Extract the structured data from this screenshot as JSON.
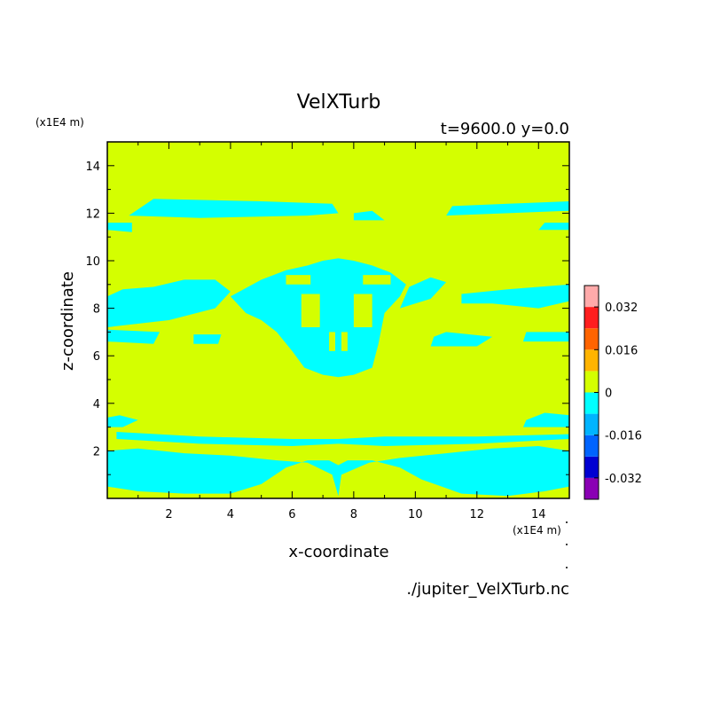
{
  "chart_data": {
    "type": "heatmap",
    "title": "VelXTurb",
    "subtitle": "t=9600.0 y=0.0",
    "xlabel": "x-coordinate",
    "ylabel": "z-coordinate",
    "x_units": "(x1E4 m)",
    "y_units": "(x1E4 m)",
    "xlim": [
      0,
      15
    ],
    "ylim": [
      0,
      15
    ],
    "x_ticks": [
      2,
      4,
      6,
      8,
      10,
      12,
      14
    ],
    "y_ticks": [
      2,
      4,
      6,
      8,
      10,
      12,
      14
    ],
    "x_tick_labels": [
      "2",
      "4",
      "6",
      "8",
      "10",
      "12",
      "14"
    ],
    "y_tick_labels": [
      "2",
      "4",
      "6",
      "8",
      "10",
      "12",
      "14"
    ],
    "background_level_color": "#d4ff00",
    "negative_level_color": "#00ffff",
    "colorbar": {
      "levels": [
        -0.04,
        -0.032,
        -0.024,
        -0.016,
        -0.008,
        0,
        0.008,
        0.016,
        0.024,
        0.032,
        0.04
      ],
      "colors": [
        "#8a00b4",
        "#0000d2",
        "#0064ff",
        "#00b4ff",
        "#00ffff",
        "#d4ff00",
        "#ffb400",
        "#ff6400",
        "#ff1e1e",
        "#ffaaaa"
      ],
      "tick_values": [
        -0.032,
        -0.016,
        0,
        0.016,
        0.032
      ],
      "tick_labels": [
        "-0.032",
        "-0.016",
        "0",
        "0.016",
        "0.032"
      ]
    },
    "negative_regions": [
      [
        [
          0.0,
          0.5
        ],
        [
          1.0,
          0.3
        ],
        [
          2.5,
          0.2
        ],
        [
          4.0,
          0.2
        ],
        [
          5.0,
          0.6
        ],
        [
          5.8,
          1.3
        ],
        [
          6.5,
          1.6
        ],
        [
          7.2,
          1.6
        ],
        [
          7.5,
          1.4
        ],
        [
          7.8,
          1.6
        ],
        [
          8.6,
          1.6
        ],
        [
          9.5,
          1.3
        ],
        [
          10.2,
          0.8
        ],
        [
          11.5,
          0.2
        ],
        [
          13.0,
          0.1
        ],
        [
          14.2,
          0.3
        ],
        [
          15.0,
          0.5
        ],
        [
          15.0,
          2.0
        ],
        [
          14.0,
          2.2
        ],
        [
          12.5,
          2.1
        ],
        [
          11.0,
          1.9
        ],
        [
          9.5,
          1.7
        ],
        [
          8.5,
          1.5
        ],
        [
          7.6,
          1.0
        ],
        [
          7.5,
          0.1
        ],
        [
          7.3,
          1.0
        ],
        [
          6.5,
          1.5
        ],
        [
          5.5,
          1.6
        ],
        [
          4.0,
          1.8
        ],
        [
          2.5,
          1.9
        ],
        [
          1.0,
          2.1
        ],
        [
          0.0,
          2.0
        ]
      ],
      [
        [
          0.3,
          2.5
        ],
        [
          3.0,
          2.3
        ],
        [
          6.0,
          2.2
        ],
        [
          7.5,
          2.3
        ],
        [
          9.0,
          2.2
        ],
        [
          12.0,
          2.3
        ],
        [
          15.0,
          2.5
        ],
        [
          15.0,
          2.7
        ],
        [
          12.0,
          2.6
        ],
        [
          9.0,
          2.6
        ],
        [
          7.5,
          2.5
        ],
        [
          6.0,
          2.5
        ],
        [
          3.0,
          2.6
        ],
        [
          0.3,
          2.8
        ]
      ],
      [
        [
          0.0,
          3.0
        ],
        [
          0.5,
          3.0
        ],
        [
          1.0,
          3.3
        ],
        [
          0.4,
          3.5
        ],
        [
          0.0,
          3.4
        ]
      ],
      [
        [
          13.5,
          3.0
        ],
        [
          15.0,
          3.0
        ],
        [
          15.0,
          3.5
        ],
        [
          14.2,
          3.6
        ],
        [
          13.6,
          3.3
        ]
      ],
      [
        [
          0.0,
          11.3
        ],
        [
          0.8,
          11.2
        ],
        [
          0.8,
          11.6
        ],
        [
          0.0,
          11.6
        ]
      ],
      [
        [
          0.7,
          11.9
        ],
        [
          3.0,
          11.8
        ],
        [
          6.5,
          11.9
        ],
        [
          7.5,
          12.0
        ],
        [
          7.3,
          12.4
        ],
        [
          5.0,
          12.5
        ],
        [
          1.5,
          12.6
        ]
      ],
      [
        [
          8.0,
          11.7
        ],
        [
          9.0,
          11.7
        ],
        [
          8.6,
          12.1
        ],
        [
          8.0,
          12.0
        ]
      ],
      [
        [
          11.0,
          11.9
        ],
        [
          13.0,
          12.0
        ],
        [
          15.0,
          12.1
        ],
        [
          15.0,
          12.5
        ],
        [
          13.0,
          12.4
        ],
        [
          11.2,
          12.3
        ]
      ],
      [
        [
          14.0,
          11.3
        ],
        [
          15.0,
          11.3
        ],
        [
          15.0,
          11.6
        ],
        [
          14.2,
          11.6
        ]
      ],
      [
        [
          0.0,
          7.2
        ],
        [
          2.0,
          7.5
        ],
        [
          3.5,
          8.0
        ],
        [
          4.0,
          8.7
        ],
        [
          3.5,
          9.2
        ],
        [
          2.5,
          9.2
        ],
        [
          1.5,
          8.9
        ],
        [
          0.5,
          8.8
        ],
        [
          0.0,
          8.5
        ]
      ],
      [
        [
          4.0,
          8.5
        ],
        [
          5.0,
          9.2
        ],
        [
          5.8,
          9.6
        ],
        [
          6.5,
          9.8
        ],
        [
          7.0,
          10.0
        ],
        [
          7.5,
          10.1
        ],
        [
          8.0,
          10.0
        ],
        [
          8.6,
          9.8
        ],
        [
          9.2,
          9.5
        ],
        [
          9.7,
          9.0
        ],
        [
          9.5,
          8.5
        ],
        [
          9.0,
          7.8
        ],
        [
          8.8,
          6.5
        ],
        [
          8.6,
          5.5
        ],
        [
          8.0,
          5.2
        ],
        [
          7.5,
          5.1
        ],
        [
          7.0,
          5.2
        ],
        [
          6.4,
          5.5
        ],
        [
          6.0,
          6.2
        ],
        [
          5.5,
          7.0
        ],
        [
          5.0,
          7.5
        ],
        [
          4.5,
          7.8
        ]
      ],
      [
        [
          9.5,
          8.0
        ],
        [
          10.5,
          8.4
        ],
        [
          11.0,
          9.1
        ],
        [
          10.5,
          9.3
        ],
        [
          9.8,
          8.9
        ]
      ],
      [
        [
          11.5,
          8.6
        ],
        [
          13.0,
          8.8
        ],
        [
          15.0,
          9.0
        ],
        [
          15.0,
          8.3
        ],
        [
          14.0,
          8.0
        ],
        [
          12.5,
          8.2
        ],
        [
          11.5,
          8.2
        ]
      ],
      [
        [
          0.0,
          6.6
        ],
        [
          1.5,
          6.5
        ],
        [
          1.7,
          7.0
        ],
        [
          0.0,
          7.1
        ]
      ],
      [
        [
          2.8,
          6.5
        ],
        [
          3.6,
          6.5
        ],
        [
          3.7,
          6.9
        ],
        [
          2.8,
          6.9
        ]
      ],
      [
        [
          10.5,
          6.4
        ],
        [
          12.0,
          6.4
        ],
        [
          12.5,
          6.8
        ],
        [
          11.0,
          7.0
        ],
        [
          10.6,
          6.8
        ]
      ],
      [
        [
          13.5,
          6.6
        ],
        [
          15.0,
          6.6
        ],
        [
          15.0,
          7.0
        ],
        [
          13.6,
          7.0
        ]
      ]
    ],
    "positive_holes": [
      [
        [
          6.3,
          7.2
        ],
        [
          6.9,
          7.2
        ],
        [
          6.9,
          8.6
        ],
        [
          6.3,
          8.6
        ]
      ],
      [
        [
          8.0,
          7.2
        ],
        [
          8.6,
          7.2
        ],
        [
          8.6,
          8.6
        ],
        [
          8.0,
          8.6
        ]
      ],
      [
        [
          5.8,
          9.0
        ],
        [
          6.6,
          9.0
        ],
        [
          6.6,
          9.4
        ],
        [
          5.8,
          9.4
        ]
      ],
      [
        [
          8.3,
          9.0
        ],
        [
          9.2,
          9.0
        ],
        [
          9.2,
          9.4
        ],
        [
          8.3,
          9.4
        ]
      ],
      [
        [
          7.2,
          6.2
        ],
        [
          7.4,
          6.2
        ],
        [
          7.4,
          7.0
        ],
        [
          7.2,
          7.0
        ]
      ],
      [
        [
          7.6,
          6.2
        ],
        [
          7.8,
          6.2
        ],
        [
          7.8,
          7.0
        ],
        [
          7.6,
          7.0
        ]
      ]
    ]
  },
  "footer": {
    "filename": "./jupiter_VelXTurb.nc"
  }
}
